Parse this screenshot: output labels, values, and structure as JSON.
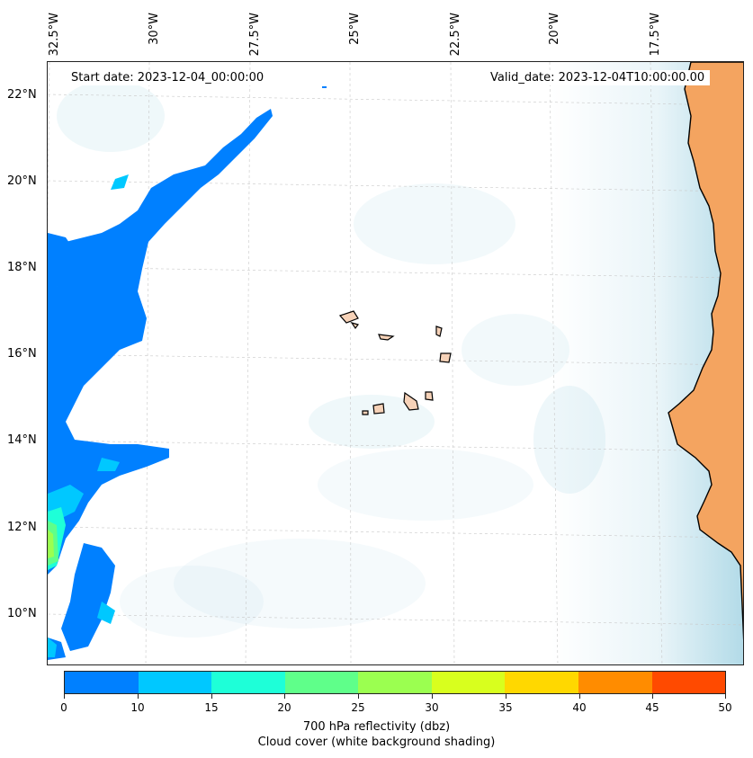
{
  "map": {
    "start_date": "Start date: 2023-12-04_00:00:00",
    "valid_date": "Valid_date: 2023-12-04T10:00:00.00",
    "lon_labels": [
      "32.5°W",
      "30°W",
      "27.5°W",
      "25°W",
      "22.5°W",
      "20°W",
      "17.5°W"
    ],
    "lat_labels": [
      "22°N",
      "20°N",
      "18°N",
      "16°N",
      "14°N",
      "12°N",
      "10°N"
    ],
    "land_color": "#f4a460",
    "ocean_color": "#ffffff",
    "cloud_color": "#a9d6e5"
  },
  "colorbar": {
    "ticks": [
      "0",
      "10",
      "15",
      "20",
      "25",
      "30",
      "35",
      "40",
      "45",
      "50"
    ],
    "colors": [
      "#0080ff",
      "#00c8ff",
      "#1effd8",
      "#5fff8a",
      "#9bff50",
      "#d8ff1e",
      "#ffd800",
      "#ff8c00",
      "#ff4a00"
    ],
    "title_line1": "700 hPa reflectivity (dbz)",
    "title_line2": "Cloud cover (white background shading)"
  }
}
